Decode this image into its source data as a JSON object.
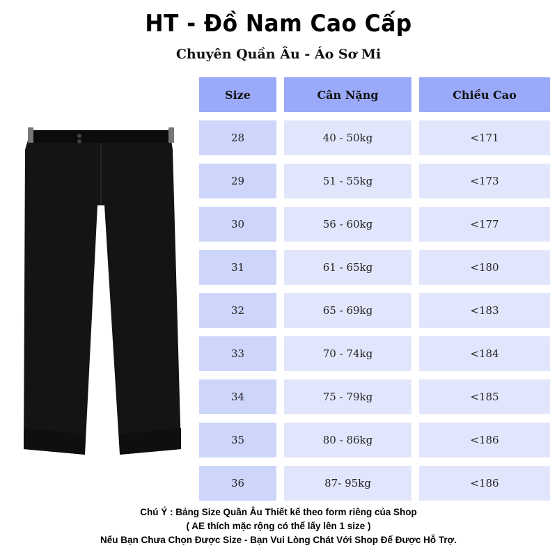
{
  "header": {
    "title": "HT - Đồ Nam Cao Cấp",
    "subtitle": "Chuyên Quần Âu - Áo Sơ Mi"
  },
  "table": {
    "columns": [
      "Size",
      "Cân Nặng",
      "Chiều Cao"
    ],
    "rows": [
      [
        "28",
        "40 - 50kg",
        "<171"
      ],
      [
        "29",
        "51 - 55kg",
        "<173"
      ],
      [
        "30",
        "56 - 60kg",
        "<177"
      ],
      [
        "31",
        "61 - 65kg",
        "<180"
      ],
      [
        "32",
        "65 - 69kg",
        "<183"
      ],
      [
        "33",
        "70 - 74kg",
        "<184"
      ],
      [
        "34",
        "75 - 79kg",
        "<185"
      ],
      [
        "35",
        "80 - 86kg",
        "<186"
      ],
      [
        "36",
        "87- 95kg",
        "<186"
      ]
    ]
  },
  "notes": [
    "Chú Ý : Bảng Size Quần Âu Thiết kế theo form riêng của Shop",
    "( AE thích mặc rộng có thể lấy lên 1 size )",
    "Nếu Bạn Chưa Chọn Được Size - Bạn Vui Lòng Chát Với Shop Để Được Hỗ Trợ."
  ],
  "colors": {
    "header": "#9aaaf8",
    "size_col": "#cdd5fb",
    "value_col": "#e2e6fc"
  },
  "image": "black-trousers-photo"
}
